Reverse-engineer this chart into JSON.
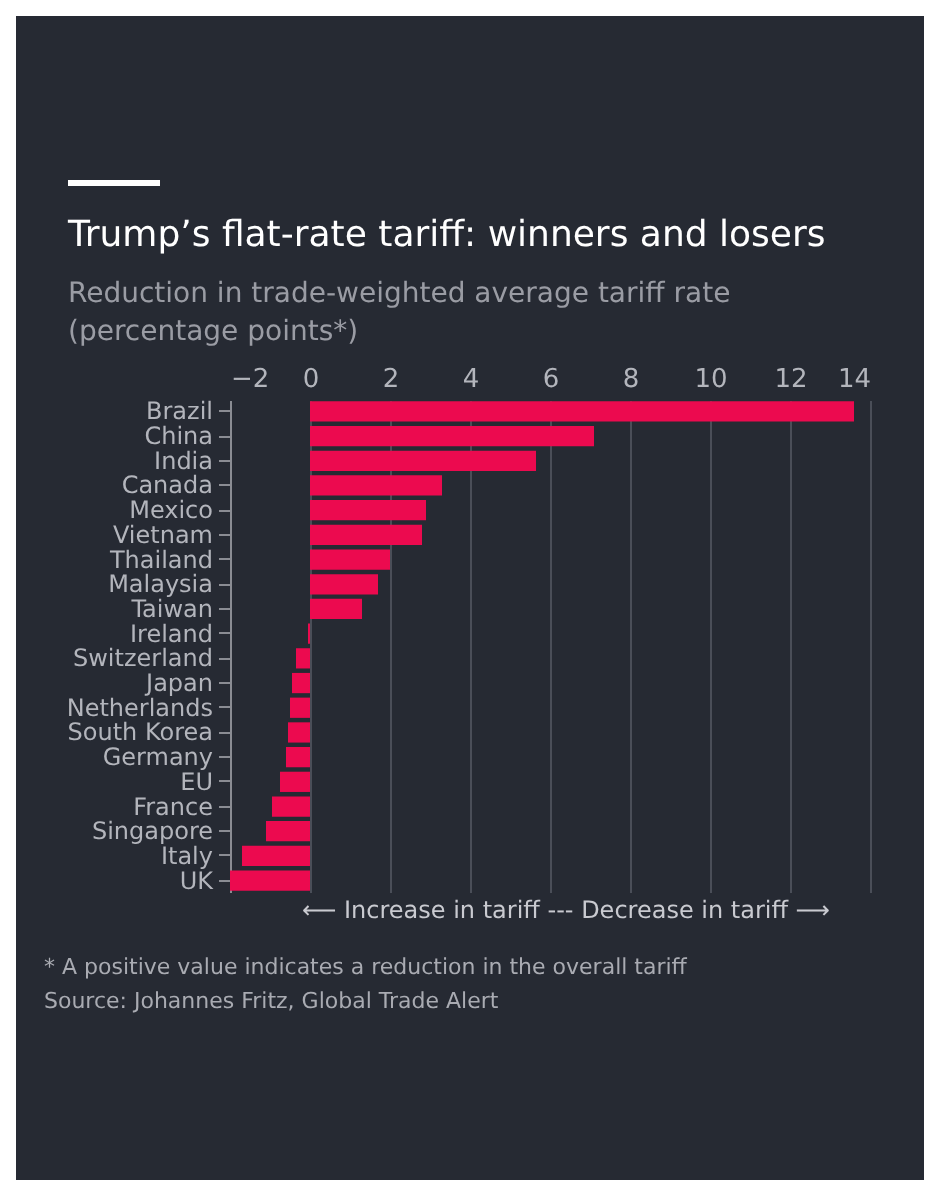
{
  "chart_data": {
    "type": "bar",
    "orientation": "horizontal",
    "title": "Trump’s flat-rate tariff: winners and losers",
    "subtitle": "Reduction in trade-weighted average tariff rate (percentage points*)",
    "xlabel": "⟵ Increase in tariff --- Decrease in tariff ⟶",
    "annotations": [
      "* A positive value indicates a reduction in the overall tariff",
      "Source: Johannes Fritz, Global Trade Alert"
    ],
    "categories": [
      "Brazil",
      "China",
      "India",
      "Canada",
      "Mexico",
      "Vietnam",
      "Thailand",
      "Malaysia",
      "Taiwan",
      "Ireland",
      "Switzerland",
      "Japan",
      "Netherlands",
      "South Korea",
      "Germany",
      "EU",
      "France",
      "Singapore",
      "Italy",
      "UK"
    ],
    "values": [
      13.6,
      7.1,
      5.65,
      3.3,
      2.9,
      2.8,
      2.0,
      1.7,
      1.3,
      -0.05,
      -0.35,
      -0.45,
      -0.5,
      -0.55,
      -0.6,
      -0.75,
      -0.95,
      -1.1,
      -1.7,
      -2.0
    ],
    "color": "#ec0a4f",
    "xlim": [
      -2,
      14
    ],
    "xticks": [
      -2,
      0,
      2,
      4,
      6,
      8,
      10,
      12,
      14
    ],
    "grid": "x"
  }
}
